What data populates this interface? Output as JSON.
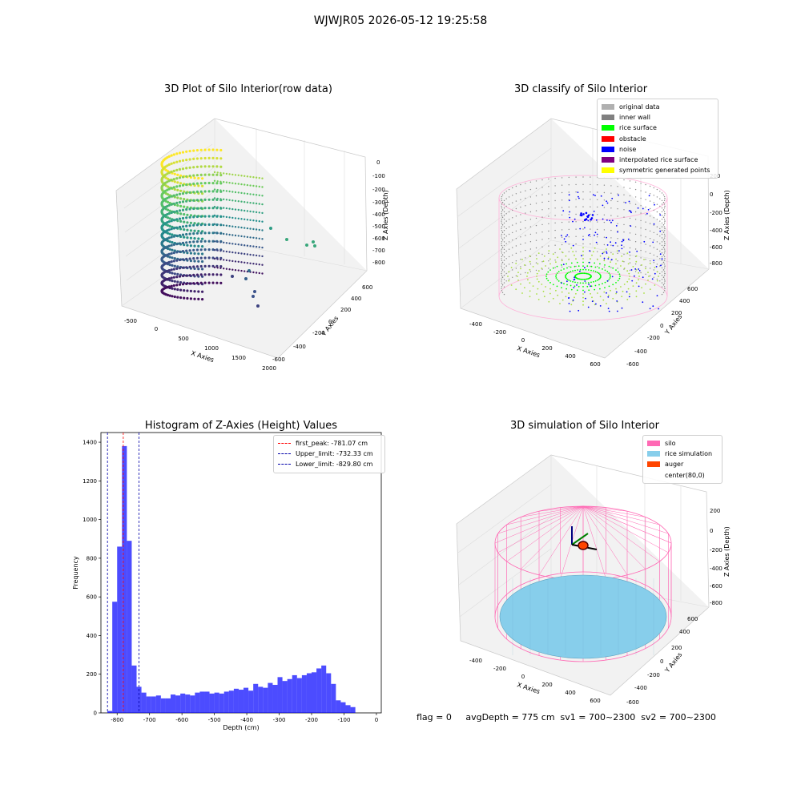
{
  "suptitle": "WJWJR05 2026-05-12 19:25:58",
  "status_line": "flag = 0     avgDepth = 775 cm  sv1 = 700~2300  sv2 = 700~2300",
  "colors": {
    "hist_bar": "#0000ff",
    "first_peak": "#ff0000",
    "limit_line": "#0000aa",
    "silo": "#ff69b4",
    "rice_simulation": "#87ceeb",
    "auger": "#ff4500"
  },
  "chart_data": [
    {
      "type": "scatter",
      "title": "3D Plot of Silo Interior(row data)",
      "xlabel": "X Axies",
      "ylabel": "Y Axies",
      "zlabel": "Z Axies (Depth)",
      "x_ticks": [
        "-500",
        "0",
        "500",
        "1000",
        "1500",
        "2000"
      ],
      "y_ticks": [
        "-600",
        "-400",
        "-200",
        "0",
        "200",
        "400",
        "600"
      ],
      "z_ticks": [
        "0",
        "-100",
        "-200",
        "-300",
        "-400",
        "-500",
        "-600",
        "-700",
        "-800"
      ],
      "xlim": [
        -500,
        2000
      ],
      "ylim": [
        -600,
        600
      ],
      "zlim": [
        -850,
        0
      ],
      "colormap": "viridis"
    },
    {
      "type": "scatter",
      "title": "3D classify of Silo Interior",
      "xlabel": "X Axies",
      "ylabel": "Y Axies",
      "zlabel": "Z Axies (Depth)",
      "x_ticks": [
        "-400",
        "-200",
        "0",
        "200",
        "400",
        "600"
      ],
      "y_ticks": [
        "-600",
        "-400",
        "-200",
        "0",
        "200",
        "400",
        "600"
      ],
      "z_ticks": [
        "200",
        "0",
        "-200",
        "-400",
        "-600",
        "-800"
      ],
      "legend": [
        {
          "label": "original data",
          "color": "#b0b0b0"
        },
        {
          "label": "inner wall",
          "color": "#808080"
        },
        {
          "label": "rice surface",
          "color": "#00ff00"
        },
        {
          "label": "obstacle",
          "color": "#ff0000"
        },
        {
          "label": "noise",
          "color": "#0000ff"
        },
        {
          "label": "interpolated rice surface",
          "color": "#800080"
        },
        {
          "label": "symmetric generated points",
          "color": "#ffff00"
        }
      ],
      "legend_position": "top-right"
    },
    {
      "type": "bar",
      "title": "Histogram of Z-Axies (Height) Values",
      "xlabel": "Depth (cm)",
      "ylabel": "Frequency",
      "xlim": [
        -850,
        15
      ],
      "ylim": [
        0,
        1450
      ],
      "x_ticks": [
        -800,
        -700,
        -600,
        -500,
        -400,
        -300,
        -200,
        -100,
        0
      ],
      "y_ticks": [
        0,
        200,
        400,
        600,
        800,
        1000,
        1200,
        1400
      ],
      "bin_start": -830,
      "bin_width": 15,
      "values": [
        10,
        575,
        860,
        1380,
        890,
        245,
        135,
        105,
        85,
        85,
        90,
        75,
        75,
        95,
        90,
        100,
        95,
        90,
        105,
        110,
        110,
        100,
        105,
        100,
        110,
        115,
        125,
        120,
        130,
        115,
        150,
        135,
        130,
        155,
        145,
        185,
        165,
        175,
        195,
        180,
        195,
        205,
        210,
        230,
        245,
        205,
        150,
        65,
        55,
        40,
        30
      ],
      "vlines": [
        {
          "label": "first_peak: -781.07 cm",
          "x": -781.07,
          "color": "#ff0000"
        },
        {
          "label": "Upper_limit: -732.33 cm",
          "x": -732.33,
          "color": "#0000aa"
        },
        {
          "label": "Lower_limit: -829.80 cm",
          "x": -829.8,
          "color": "#0000aa"
        }
      ],
      "legend_position": "top-right"
    },
    {
      "type": "scatter",
      "title": "3D simulation of Silo Interior",
      "xlabel": "X Axies",
      "ylabel": "Y Axies",
      "zlabel": "Z Axies (Depth)",
      "x_ticks": [
        "-400",
        "-200",
        "0",
        "200",
        "400",
        "600"
      ],
      "y_ticks": [
        "-600",
        "-400",
        "-200",
        "0",
        "200",
        "400",
        "600"
      ],
      "z_ticks": [
        "200",
        "0",
        "-200",
        "-400",
        "-600",
        "-800"
      ],
      "legend": [
        {
          "label": "silo",
          "color": "#ff69b4"
        },
        {
          "label": "rice simulation",
          "color": "#87ceeb"
        },
        {
          "label": "auger",
          "color": "#ff4500"
        },
        {
          "label": "center(80,0)",
          "color": ""
        }
      ],
      "legend_position": "top-right"
    }
  ]
}
